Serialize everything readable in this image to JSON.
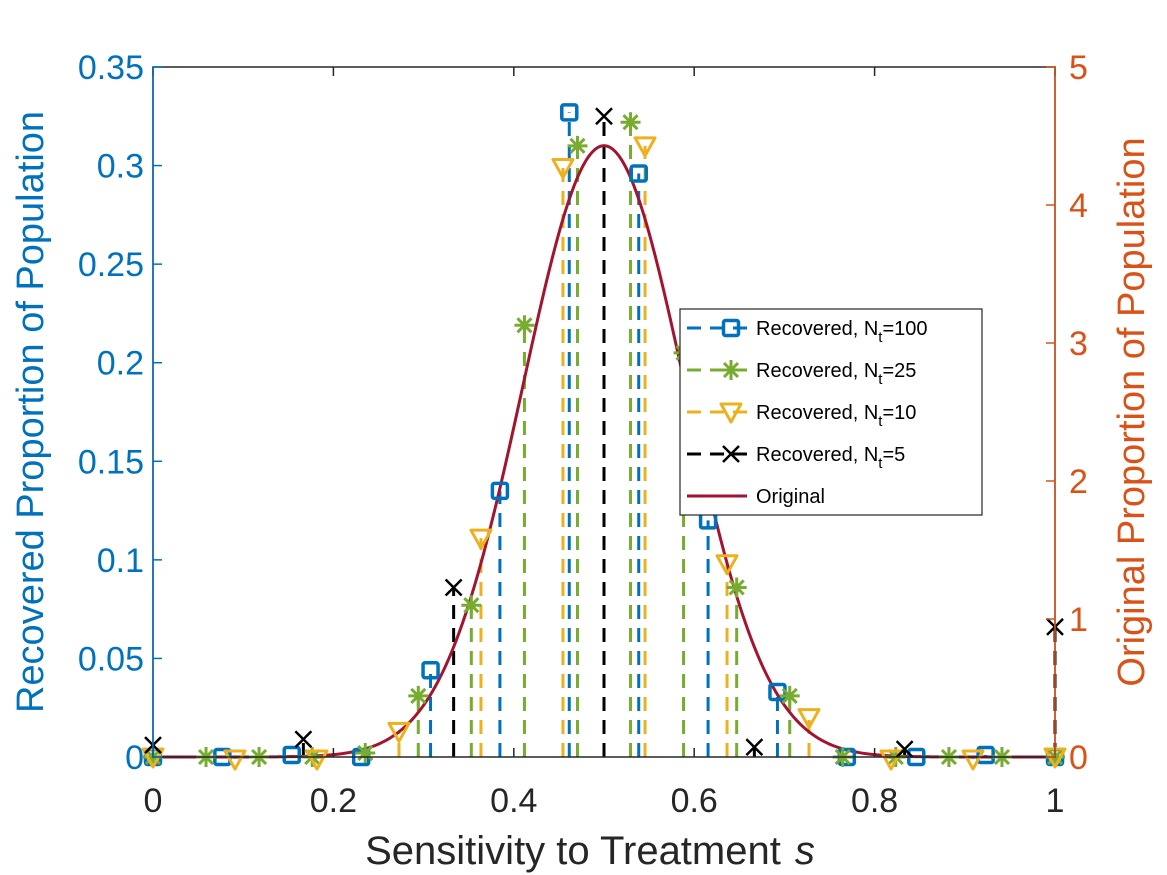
{
  "chart_data": {
    "type": "line",
    "title": "",
    "xlabel": "Sensitivity to Treatment",
    "xlabel_var": "s",
    "ylabel_left": "Recovered Proportion of Population",
    "ylabel_right": "Original Proportion of Population",
    "xlim": [
      0,
      1
    ],
    "ylim_left": [
      0,
      0.35
    ],
    "ylim_right": [
      0,
      5
    ],
    "x_ticks": [
      "0",
      "0.2",
      "0.4",
      "0.6",
      "0.8",
      "1"
    ],
    "y_left_ticks": [
      "0",
      "0.05",
      "0.1",
      "0.15",
      "0.2",
      "0.25",
      "0.3",
      "0.35"
    ],
    "y_right_ticks": [
      "0",
      "1",
      "2",
      "3",
      "4",
      "5"
    ],
    "grid": false,
    "legend_position": "center-right",
    "colors": {
      "left_axis": "#0072BD",
      "right_axis": "#D95319",
      "n100": "#0072BD",
      "n25": "#77AC30",
      "n10": "#EDB120",
      "n5": "#000000",
      "original": "#A2142F",
      "axis_text": "#262626"
    },
    "series": [
      {
        "key": "n100",
        "name_prefix": "Recovered, N",
        "sub": "t",
        "name_suffix": "=100",
        "marker": "square",
        "axis": "left",
        "x": [
          0,
          0.0769,
          0.1538,
          0.2308,
          0.3077,
          0.3846,
          0.4615,
          0.5385,
          0.6154,
          0.6923,
          0.7692,
          0.8462,
          0.9231,
          1.0
        ],
        "y": [
          0.0,
          0.0,
          0.001,
          0.0,
          0.044,
          0.135,
          0.327,
          0.296,
          0.12,
          0.033,
          0.0,
          0.0,
          0.001,
          0.0
        ]
      },
      {
        "key": "n25",
        "name_prefix": "Recovered, N",
        "sub": "t",
        "name_suffix": "=25",
        "marker": "asterisk",
        "axis": "left",
        "x": [
          0,
          0.0588,
          0.1176,
          0.1765,
          0.2353,
          0.2941,
          0.3529,
          0.4118,
          0.4706,
          0.5294,
          0.5882,
          0.6471,
          0.7059,
          0.7647,
          0.8235,
          0.8824,
          0.9412,
          1.0
        ],
        "y": [
          0.0,
          0.0,
          0.0,
          0.0,
          0.002,
          0.031,
          0.077,
          0.219,
          0.31,
          0.322,
          0.205,
          0.086,
          0.031,
          0.0,
          0.0,
          0.0,
          0.0,
          0.0
        ]
      },
      {
        "key": "n10",
        "name_prefix": "Recovered, N",
        "sub": "t",
        "name_suffix": "=10",
        "marker": "triangle-down",
        "axis": "left",
        "x": [
          0,
          0.0909,
          0.1818,
          0.2727,
          0.3636,
          0.4545,
          0.5455,
          0.6364,
          0.7273,
          0.8182,
          0.9091,
          1.0
        ],
        "y": [
          0.0,
          -0.001,
          -0.001,
          0.013,
          0.111,
          0.299,
          0.31,
          0.098,
          0.02,
          -0.001,
          -0.001,
          0.0
        ]
      },
      {
        "key": "n5",
        "name_prefix": "Recovered, N",
        "sub": "t",
        "name_suffix": "=5",
        "marker": "x",
        "axis": "left",
        "x": [
          0,
          0.1667,
          0.3333,
          0.5,
          0.6667,
          0.8333,
          1.0
        ],
        "y": [
          0.006,
          0.009,
          0.086,
          0.325,
          0.005,
          0.004,
          0.066
        ]
      },
      {
        "key": "original",
        "name": "Original",
        "line": "solid",
        "axis": "right",
        "distribution": "gaussian",
        "mean": 0.5,
        "sd": 0.09,
        "peak": 4.43
      }
    ]
  }
}
